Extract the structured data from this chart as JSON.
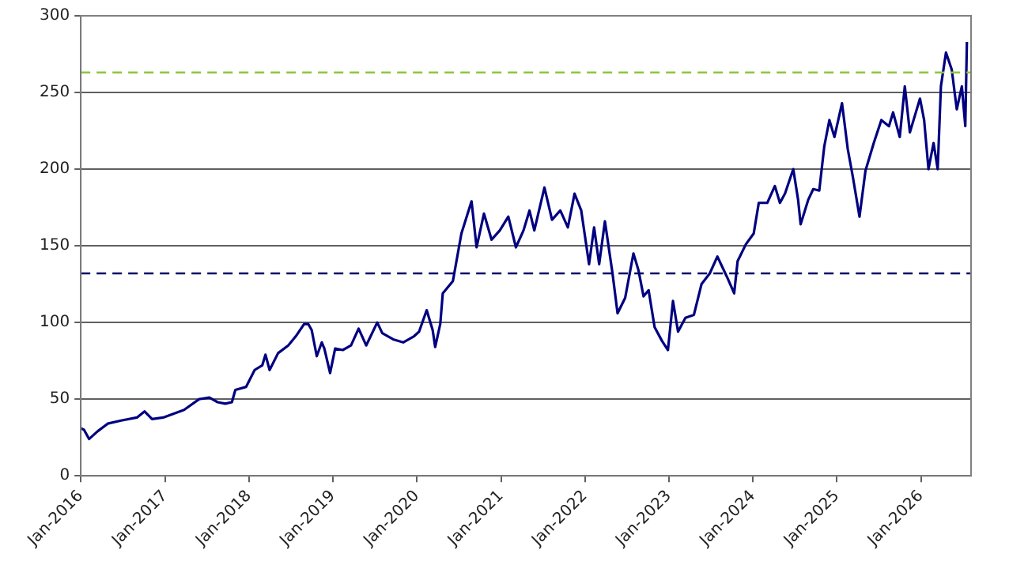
{
  "chart_data": {
    "type": "line",
    "x": [
      "2016-01-01",
      "2016-01-15",
      "2016-02-06",
      "2016-03-14",
      "2016-04-27",
      "2016-06-24",
      "2016-09-01",
      "2016-10-04",
      "2016-11-06",
      "2016-12-24",
      "2017-03-25",
      "2017-05-30",
      "2017-07-13",
      "2017-08-18",
      "2017-09-20",
      "2017-10-19",
      "2017-11-03",
      "2017-12-20",
      "2018-01-26",
      "2018-02-28",
      "2018-03-14",
      "2018-04-01",
      "2018-05-08",
      "2018-06-21",
      "2018-07-24",
      "2018-08-29",
      "2018-09-16",
      "2018-10-01",
      "2018-10-23",
      "2018-11-14",
      "2018-11-25",
      "2018-12-20",
      "2019-01-11",
      "2019-02-13",
      "2019-03-21",
      "2019-04-23",
      "2019-05-26",
      "2019-07-13",
      "2019-08-04",
      "2019-09-20",
      "2019-11-03",
      "2019-12-20",
      "2020-01-11",
      "2020-02-13",
      "2020-03-10",
      "2020-03-21",
      "2020-04-12",
      "2020-04-23",
      "2020-06-06",
      "2020-07-13",
      "2020-08-26",
      "2020-09-17",
      "2020-10-19",
      "2020-11-21",
      "2020-12-27",
      "2021-02-02",
      "2021-03-07",
      "2021-04-09",
      "2021-05-05",
      "2021-05-26",
      "2021-07-09",
      "2021-08-11",
      "2021-09-16",
      "2021-10-19",
      "2021-11-17",
      "2021-12-16",
      "2022-01-19",
      "2022-02-10",
      "2022-03-04",
      "2022-03-29",
      "2022-05-01",
      "2022-05-23",
      "2022-06-25",
      "2022-07-31",
      "2022-08-22",
      "2022-09-13",
      "2022-10-05",
      "2022-10-31",
      "2022-12-02",
      "2022-12-28",
      "2023-01-19",
      "2023-02-10",
      "2023-03-14",
      "2023-04-20",
      "2023-05-23",
      "2023-06-28",
      "2023-07-31",
      "2023-08-22",
      "2023-09-13",
      "2023-10-12",
      "2023-10-27",
      "2023-12-02",
      "2024-01-05",
      "2024-01-27",
      "2024-03-04",
      "2024-04-06",
      "2024-04-28",
      "2024-05-20",
      "2024-06-25",
      "2024-07-16",
      "2024-07-27",
      "2024-08-29",
      "2024-09-20",
      "2024-10-16",
      "2024-11-07",
      "2024-11-29",
      "2024-12-21",
      "2025-01-23",
      "2025-02-17",
      "2025-03-11",
      "2025-04-09",
      "2025-05-05",
      "2025-06-10",
      "2025-07-13",
      "2025-08-15",
      "2025-09-02",
      "2025-10-01",
      "2025-10-23",
      "2025-11-14",
      "2025-12-06",
      "2025-12-28",
      "2026-01-15",
      "2026-02-03",
      "2026-02-25",
      "2026-03-15",
      "2026-03-29",
      "2026-04-20",
      "2026-05-15",
      "2026-06-06",
      "2026-06-28",
      "2026-07-13",
      "2026-07-20"
    ],
    "series": [
      {
        "color": "#000080",
        "values": [
          31,
          30,
          24,
          29,
          34,
          36,
          38,
          42,
          37,
          38,
          43,
          50,
          51,
          48,
          47,
          48,
          56,
          58,
          69,
          72,
          79,
          69,
          80,
          85,
          91,
          99,
          99,
          95,
          78,
          87,
          83,
          67,
          83,
          82,
          85,
          96,
          85,
          100,
          93,
          89,
          87,
          91,
          94,
          108,
          95,
          84,
          99,
          119,
          127,
          158,
          179,
          149,
          171,
          154,
          160,
          169,
          149,
          160,
          173,
          160,
          188,
          167,
          173,
          162,
          184,
          173,
          138,
          162,
          138,
          166,
          132,
          106,
          116,
          145,
          134,
          117,
          121,
          97,
          88,
          82,
          114,
          94,
          103,
          105,
          125,
          132,
          143,
          136,
          129,
          119,
          140,
          151,
          158,
          178,
          178,
          189,
          178,
          184,
          200,
          180,
          164,
          180,
          187,
          186,
          215,
          232,
          221,
          243,
          213,
          195,
          169,
          199,
          217,
          232,
          228,
          237,
          221,
          254,
          224,
          235,
          246,
          232,
          200,
          217,
          200,
          254,
          276,
          265,
          239,
          254,
          228,
          283
        ]
      }
    ],
    "xlim": [
      "2016-01-01",
      "2026-08-07"
    ],
    "xticks": [
      {
        "value": "2016-01-01",
        "label": "Jan-2016"
      },
      {
        "value": "2017-01-01",
        "label": "Jan-2017"
      },
      {
        "value": "2018-01-01",
        "label": "Jan-2018"
      },
      {
        "value": "2019-01-01",
        "label": "Jan-2019"
      },
      {
        "value": "2020-01-01",
        "label": "Jan-2020"
      },
      {
        "value": "2021-01-01",
        "label": "Jan-2021"
      },
      {
        "value": "2022-01-01",
        "label": "Jan-2022"
      },
      {
        "value": "2023-01-01",
        "label": "Jan-2023"
      },
      {
        "value": "2024-01-01",
        "label": "Jan-2024"
      },
      {
        "value": "2025-01-01",
        "label": "Jan-2025"
      },
      {
        "value": "2026-01-01",
        "label": "Jan-2026"
      }
    ],
    "ylim": [
      0,
      300
    ],
    "yticks": [
      0,
      50,
      100,
      150,
      200,
      250,
      300
    ],
    "ref_lines": [
      {
        "axis": "y",
        "value": 263,
        "color": "#8dc63f",
        "line_style": "dashed"
      },
      {
        "axis": "y",
        "value": 132,
        "color": "#000066",
        "line_style": "dashed"
      }
    ],
    "grid": "y",
    "legend": false,
    "marker": "none",
    "line_style": "solid"
  }
}
